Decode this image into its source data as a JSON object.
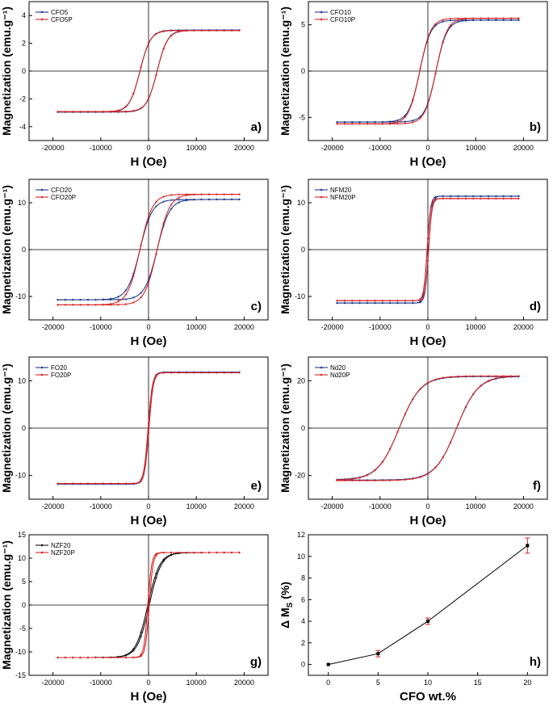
{
  "chart_data": [
    {
      "type": "line",
      "panel_label": "a)",
      "xlabel": "H (Oe)",
      "ylabel": "Magnetization (emu.g⁻¹)",
      "xlim": [
        -25000,
        25000
      ],
      "ylim": [
        -5,
        5
      ],
      "xticks": [
        -20000,
        -10000,
        0,
        10000,
        20000
      ],
      "yticks": [
        -4,
        -2,
        0,
        2,
        4
      ],
      "tick_labels_x": [
        "-20000",
        "-10000",
        "0",
        "10000",
        "20000"
      ],
      "tick_labels_y": [
        "-4",
        "-2",
        "0",
        "2",
        "4"
      ],
      "legend": [
        "CFO5",
        "CFO5P"
      ],
      "series": [
        {
          "name": "CFO5",
          "color": "#1f3a8a",
          "ms": 2.95,
          "hc": 1800,
          "width": 2200,
          "slope": 0
        },
        {
          "name": "CFO5P",
          "color": "#d62728",
          "ms": 2.92,
          "hc": 1800,
          "width": 2200,
          "slope": 0
        }
      ]
    },
    {
      "type": "line",
      "panel_label": "b)",
      "xlabel": "H (Oe)",
      "ylabel": "Magnetization (emu.g⁻¹)",
      "xlim": [
        -25000,
        25000
      ],
      "ylim": [
        -7.5,
        7.5
      ],
      "xticks": [
        -20000,
        -10000,
        0,
        10000,
        20000
      ],
      "yticks": [
        -5,
        0,
        5
      ],
      "tick_labels_x": [
        "-20000",
        "-10000",
        "0",
        "10000",
        "20000"
      ],
      "tick_labels_y": [
        "-5",
        "0",
        "5"
      ],
      "legend": [
        "CFO10",
        "CFO10P"
      ],
      "series": [
        {
          "name": "CFO10",
          "color": "#1f3a8a",
          "ms": 5.5,
          "hc": 1700,
          "width": 2300,
          "slope": 0
        },
        {
          "name": "CFO10P",
          "color": "#d62728",
          "ms": 5.7,
          "hc": 1700,
          "width": 2300,
          "slope": 0
        }
      ]
    },
    {
      "type": "line",
      "panel_label": "c)",
      "xlabel": "H (Oe)",
      "ylabel": "Magnetization (emu.g⁻¹)",
      "xlim": [
        -25000,
        25000
      ],
      "ylim": [
        -15,
        15
      ],
      "xticks": [
        -20000,
        -10000,
        0,
        10000,
        20000
      ],
      "yticks": [
        -10,
        0,
        10
      ],
      "tick_labels_x": [
        "-20000",
        "-10000",
        "0",
        "10000",
        "20000"
      ],
      "tick_labels_y": [
        "-10",
        "0",
        "10"
      ],
      "legend": [
        "CFO20",
        "CFO20P"
      ],
      "series": [
        {
          "name": "CFO20",
          "color": "#1f3a8a",
          "ms": 10.7,
          "hc": 1800,
          "width": 2600,
          "slope": 0
        },
        {
          "name": "CFO20P",
          "color": "#d62728",
          "ms": 11.8,
          "hc": 1800,
          "width": 2600,
          "slope": 0
        }
      ]
    },
    {
      "type": "line",
      "panel_label": "d)",
      "xlabel": "H (Oe)",
      "ylabel": "Magnetization (emu.g⁻¹)",
      "xlim": [
        -25000,
        25000
      ],
      "ylim": [
        -15,
        15
      ],
      "xticks": [
        -20000,
        -10000,
        0,
        10000,
        20000
      ],
      "yticks": [
        -10,
        0,
        10
      ],
      "tick_labels_x": [
        "-20000",
        "-10000",
        "0",
        "10000",
        "20000"
      ],
      "tick_labels_y": [
        "-10",
        "0",
        "10"
      ],
      "legend": [
        "NFM20",
        "NFM20P"
      ],
      "series": [
        {
          "name": "NFM20",
          "color": "#1f3a8a",
          "ms": 11.4,
          "hc": 150,
          "width": 700,
          "slope": 0
        },
        {
          "name": "NFM20P",
          "color": "#d62728",
          "ms": 10.9,
          "hc": 150,
          "width": 700,
          "slope": 0
        }
      ]
    },
    {
      "type": "line",
      "panel_label": "e)",
      "xlabel": "H (Oe)",
      "ylabel": "Magnetization (emu.g⁻¹)",
      "xlim": [
        -25000,
        25000
      ],
      "ylim": [
        -15,
        15
      ],
      "xticks": [
        -20000,
        -10000,
        0,
        10000,
        20000
      ],
      "yticks": [
        -10,
        0,
        10
      ],
      "tick_labels_x": [
        "-20000",
        "-10000",
        "0",
        "10000",
        "20000"
      ],
      "tick_labels_y": [
        "-10",
        "0",
        "10"
      ],
      "legend": [
        "FO20",
        "FO20P"
      ],
      "series": [
        {
          "name": "FO20",
          "color": "#1f3a8a",
          "ms": 11.8,
          "hc": 80,
          "width": 900,
          "slope": 0
        },
        {
          "name": "FO20P",
          "color": "#d62728",
          "ms": 11.7,
          "hc": 80,
          "width": 900,
          "slope": 0
        }
      ]
    },
    {
      "type": "line",
      "panel_label": "f)",
      "xlabel": "H (Oe)",
      "ylabel": "Magnetization (emu.g⁻¹)",
      "xlim": [
        -25000,
        25000
      ],
      "ylim": [
        -30,
        30
      ],
      "xticks": [
        -20000,
        -10000,
        0,
        10000,
        20000
      ],
      "yticks": [
        -20,
        0,
        20
      ],
      "tick_labels_x": [
        "-20000",
        "-10000",
        "0",
        "10000",
        "20000"
      ],
      "tick_labels_y": [
        "-20",
        "0",
        "20"
      ],
      "legend": [
        "Nd20",
        "Nd20P"
      ],
      "series": [
        {
          "name": "Nd20",
          "color": "#1f3a8a",
          "ms": 21.8,
          "hc": 6000,
          "width": 4500,
          "slope": 0
        },
        {
          "name": "Nd20P",
          "color": "#d62728",
          "ms": 22.0,
          "hc": 6000,
          "width": 4500,
          "slope": 0
        }
      ]
    },
    {
      "type": "line",
      "panel_label": "g)",
      "xlabel": "H (Oe)",
      "ylabel": "Magnetization (emu.g⁻¹)",
      "xlim": [
        -25000,
        25000
      ],
      "ylim": [
        -15,
        15
      ],
      "xticks": [
        -20000,
        -10000,
        0,
        10000,
        20000
      ],
      "yticks": [
        -15,
        -10,
        -5,
        0,
        5,
        10,
        15
      ],
      "tick_labels_x": [
        "-20000",
        "-10000",
        "0",
        "10000",
        "20000"
      ],
      "tick_labels_y": [
        "-15",
        "-10",
        "-5",
        "0",
        "5",
        "10",
        "15"
      ],
      "legend": [
        "NZF20",
        "NZF20P"
      ],
      "series": [
        {
          "name": "NZF20",
          "color": "#111111",
          "ms": 11.2,
          "hc": 150,
          "width": 2500,
          "slope": 0
        },
        {
          "name": "NZF20P",
          "color": "#d62728",
          "ms": 11.2,
          "hc": 150,
          "width": 800,
          "slope": 0
        }
      ]
    },
    {
      "type": "scatter",
      "panel_label": "h)",
      "xlabel": "CFO wt.%",
      "ylabel": "Δ M",
      "ylabel_sub": "S",
      "ylabel_unit": " (%)",
      "xlim": [
        -2,
        22
      ],
      "ylim": [
        -1,
        12
      ],
      "xticks": [
        0,
        5,
        10,
        15,
        20
      ],
      "yticks": [
        0,
        2,
        4,
        6,
        8,
        10,
        12
      ],
      "tick_labels_x": [
        "0",
        "5",
        "10",
        "15",
        "20"
      ],
      "tick_labels_y": [
        "0",
        "2",
        "4",
        "6",
        "8",
        "10",
        "12"
      ],
      "x": [
        0,
        5,
        10,
        20
      ],
      "y": [
        0,
        1,
        4,
        11
      ],
      "err": [
        0,
        0.3,
        0.3,
        0.7
      ]
    }
  ]
}
